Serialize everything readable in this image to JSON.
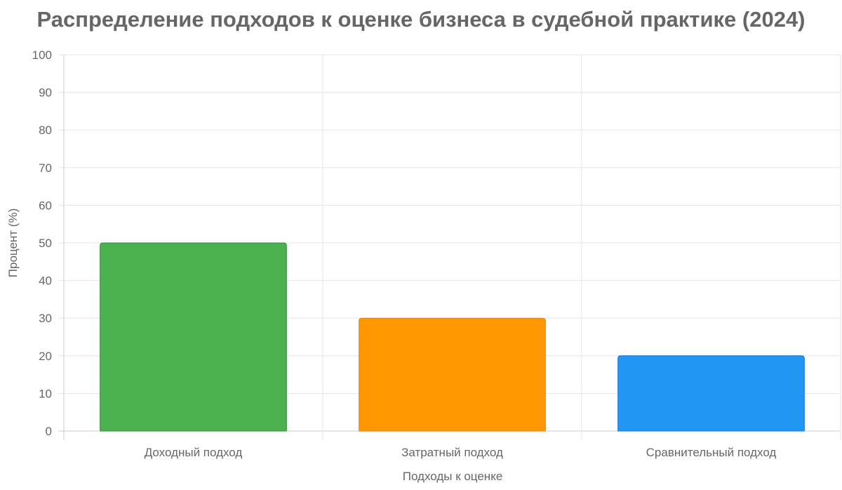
{
  "chart_data": {
    "type": "bar",
    "title": "Распределение подходов к оценке бизнеса в судебной практике (2024)",
    "categories": [
      "Доходный подход",
      "Затратный подход",
      "Сравнительный подход"
    ],
    "values": [
      50,
      30,
      20
    ],
    "colors": [
      "#4caf50",
      "#ff9800",
      "#2196f3"
    ],
    "border_colors": [
      "#388e3c",
      "#f57c00",
      "#1976d2"
    ],
    "xlabel": "Подходы к оценке",
    "ylabel": "Процент (%)",
    "ylim": [
      0,
      100
    ],
    "yticks": [
      0,
      10,
      20,
      30,
      40,
      50,
      60,
      70,
      80,
      90,
      100
    ],
    "grid": true,
    "legend": false
  }
}
